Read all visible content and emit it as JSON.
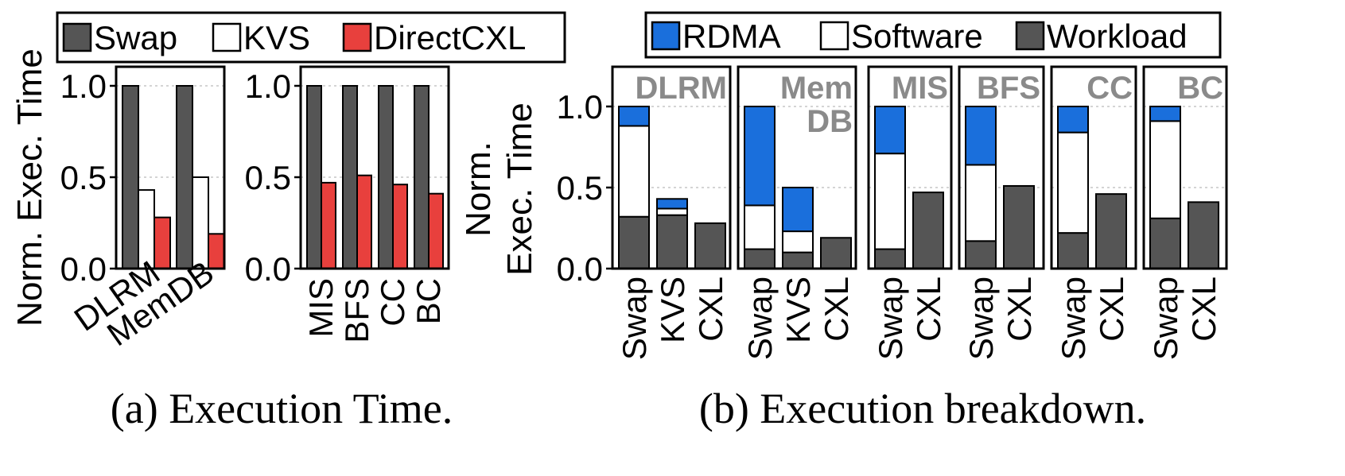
{
  "colors": {
    "swap": "#555555",
    "kvs": "#ffffff",
    "directcxl": "#e8403d",
    "rdma": "#1a6fdc",
    "software": "#ffffff",
    "workload": "#555555",
    "subplot_title": "#8a8a8a"
  },
  "chart_data": [
    {
      "id": "a1",
      "type": "bar",
      "ylabel": "Norm. Exec. Time",
      "ylim": [
        0,
        1.0
      ],
      "yticks": [
        "0.0",
        "0.5",
        "1.0"
      ],
      "grid": true,
      "legend": {
        "placement": "top",
        "entries": [
          "Swap",
          "KVS",
          "DirectCXL"
        ]
      },
      "categories": [
        "DLRM",
        "MemDB"
      ],
      "series": [
        {
          "name": "Swap",
          "values": [
            1.0,
            1.0
          ]
        },
        {
          "name": "KVS",
          "values": [
            0.43,
            0.5
          ]
        },
        {
          "name": "DirectCXL",
          "values": [
            0.28,
            0.19
          ]
        }
      ]
    },
    {
      "id": "a2",
      "type": "bar",
      "ylim": [
        0,
        1.0
      ],
      "yticks": [
        "0.0",
        "0.5",
        "1.0"
      ],
      "grid": true,
      "categories": [
        "MIS",
        "BFS",
        "CC",
        "BC"
      ],
      "series": [
        {
          "name": "Swap",
          "values": [
            1.0,
            1.0,
            1.0,
            1.0
          ]
        },
        {
          "name": "DirectCXL",
          "values": [
            0.47,
            0.51,
            0.46,
            0.41
          ]
        }
      ]
    },
    {
      "id": "b",
      "type": "bar",
      "stacked": true,
      "ylabel": "Norm. Exec. Time",
      "ylabel_lines": [
        "Norm.",
        "Exec. Time"
      ],
      "ylim": [
        0,
        1.2
      ],
      "yticks": [
        "0.0",
        "0.5",
        "1.0"
      ],
      "grid": true,
      "legend": {
        "placement": "top",
        "entries": [
          "RDMA",
          "Software",
          "Workload"
        ]
      },
      "groups": [
        {
          "title": [
            "DLRM"
          ],
          "bars": [
            {
              "label": "Swap",
              "workload": 0.32,
              "software": 0.56,
              "rdma": 0.12
            },
            {
              "label": "KVS",
              "workload": 0.33,
              "software": 0.04,
              "rdma": 0.06
            },
            {
              "label": "CXL",
              "workload": 0.28,
              "software": 0,
              "rdma": 0
            }
          ]
        },
        {
          "title": [
            "Mem",
            "DB"
          ],
          "bars": [
            {
              "label": "Swap",
              "workload": 0.12,
              "software": 0.27,
              "rdma": 0.61
            },
            {
              "label": "KVS",
              "workload": 0.1,
              "software": 0.13,
              "rdma": 0.27
            },
            {
              "label": "CXL",
              "workload": 0.19,
              "software": 0,
              "rdma": 0
            }
          ]
        },
        {
          "title": [
            "MIS"
          ],
          "bars": [
            {
              "label": "Swap",
              "workload": 0.12,
              "software": 0.59,
              "rdma": 0.29
            },
            {
              "label": "CXL",
              "workload": 0.47,
              "software": 0,
              "rdma": 0
            }
          ]
        },
        {
          "title": [
            "BFS"
          ],
          "bars": [
            {
              "label": "Swap",
              "workload": 0.17,
              "software": 0.47,
              "rdma": 0.36
            },
            {
              "label": "CXL",
              "workload": 0.51,
              "software": 0,
              "rdma": 0
            }
          ]
        },
        {
          "title": [
            "CC"
          ],
          "bars": [
            {
              "label": "Swap",
              "workload": 0.22,
              "software": 0.62,
              "rdma": 0.16
            },
            {
              "label": "CXL",
              "workload": 0.46,
              "software": 0,
              "rdma": 0
            }
          ]
        },
        {
          "title": [
            "BC"
          ],
          "bars": [
            {
              "label": "Swap",
              "workload": 0.31,
              "software": 0.6,
              "rdma": 0.09
            },
            {
              "label": "CXL",
              "workload": 0.41,
              "software": 0,
              "rdma": 0
            }
          ]
        }
      ]
    }
  ],
  "captions": {
    "a": "(a) Execution Time.",
    "b": "(b) Execution breakdown."
  }
}
